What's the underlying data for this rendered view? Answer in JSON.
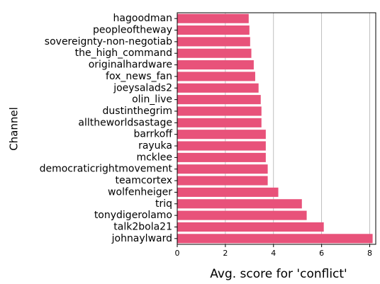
{
  "chart_data": {
    "type": "barh",
    "xlabel": "Avg. score for 'conflict'",
    "ylabel": "Channel",
    "categories": [
      "hagoodman",
      "peopleoftheway",
      "sovereignty-non-negotiab",
      "the_high_command",
      "originalhardware",
      "fox_news_fan",
      "joeysalads2",
      "olin_live",
      "dustinthegrim",
      "alltheworldsastage",
      "barrkoff",
      "rayuka",
      "mcklee",
      "democraticrightmovement",
      "teamcortex",
      "wolfenheiger",
      "triq",
      "tonydigerolamo",
      "talk2bola21",
      "johnaylward"
    ],
    "values": [
      2.97,
      3.0,
      3.03,
      3.08,
      3.18,
      3.24,
      3.38,
      3.47,
      3.5,
      3.5,
      3.68,
      3.68,
      3.68,
      3.76,
      3.76,
      4.2,
      5.18,
      5.38,
      6.09,
      8.12
    ],
    "color": "#e8527a",
    "xlim": [
      0,
      8.25
    ],
    "xticks": [
      0,
      2,
      4,
      6,
      8
    ],
    "grid": true
  }
}
